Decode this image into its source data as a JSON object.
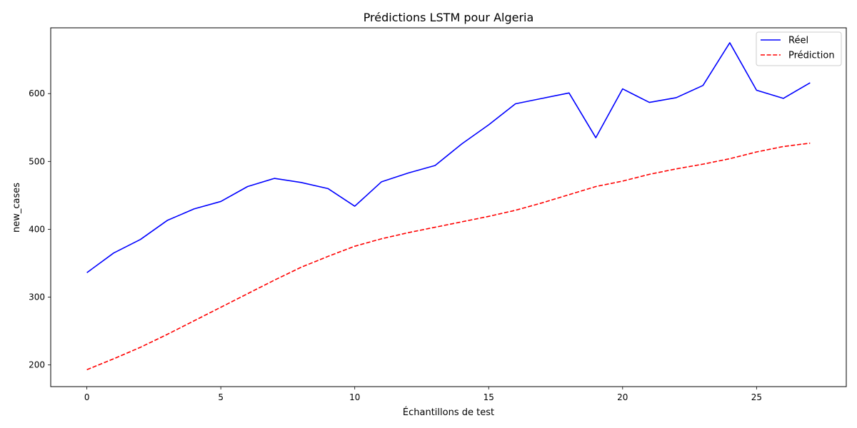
{
  "chart_data": {
    "type": "line",
    "title": "Prédictions LSTM pour Algeria",
    "xlabel": "Échantillons de test",
    "ylabel": "new_cases",
    "xlim": [
      -1.35,
      28.35
    ],
    "ylim": [
      168,
      697
    ],
    "xticks": [
      0,
      5,
      10,
      15,
      20,
      25
    ],
    "yticks": [
      200,
      300,
      400,
      500,
      600
    ],
    "grid": false,
    "legend_position": "top-right",
    "x": [
      0,
      1,
      2,
      3,
      4,
      5,
      6,
      7,
      8,
      9,
      10,
      11,
      12,
      13,
      14,
      15,
      16,
      17,
      18,
      19,
      20,
      21,
      22,
      23,
      24,
      25,
      26,
      27
    ],
    "series": [
      {
        "name": "Réel",
        "color": "#0000ff",
        "style": "solid",
        "values": [
          336,
          365,
          385,
          413,
          430,
          441,
          463,
          475,
          469,
          460,
          434,
          470,
          483,
          494,
          526,
          554,
          585,
          593,
          601,
          535,
          607,
          587,
          594,
          612,
          675,
          605,
          593,
          616
        ]
      },
      {
        "name": "Prédiction",
        "color": "#ff0000",
        "style": "dashed",
        "values": [
          193,
          209,
          226,
          245,
          265,
          285,
          305,
          325,
          344,
          360,
          375,
          386,
          395,
          403,
          411,
          419,
          428,
          439,
          451,
          463,
          471,
          481,
          489,
          496,
          504,
          514,
          522,
          527
        ]
      }
    ]
  }
}
